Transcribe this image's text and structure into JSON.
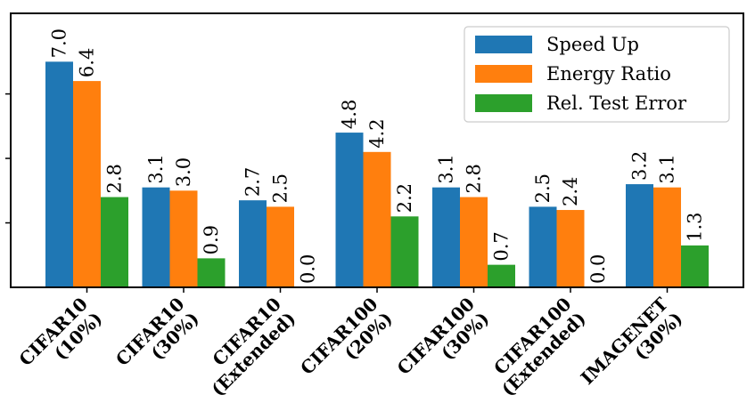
{
  "chart_data": {
    "type": "bar",
    "categories": [
      [
        "CIFAR10",
        "(10%)"
      ],
      [
        "CIFAR10",
        "(30%)"
      ],
      [
        "CIFAR10",
        "(Extended)"
      ],
      [
        "CIFAR100",
        "(20%)"
      ],
      [
        "CIFAR100",
        "(30%)"
      ],
      [
        "CIFAR100",
        "(Extended)"
      ],
      [
        "IMAGENET",
        "(30%)"
      ]
    ],
    "series": [
      {
        "name": "Speed Up",
        "color": "#1f77b4",
        "values": [
          7.0,
          3.1,
          2.7,
          4.8,
          3.1,
          2.5,
          3.2
        ],
        "labels": [
          "7.0",
          "3.1",
          "2.7",
          "4.8",
          "3.1",
          "2.5",
          "3.2"
        ]
      },
      {
        "name": "Energy Ratio",
        "color": "#ff7f0e",
        "values": [
          6.4,
          3.0,
          2.5,
          4.2,
          2.8,
          2.4,
          3.1
        ],
        "labels": [
          "6.4",
          "3.0",
          "2.5",
          "4.2",
          "2.8",
          "2.4",
          "3.1"
        ]
      },
      {
        "name": "Rel. Test Error",
        "color": "#2ca02c",
        "values": [
          2.8,
          0.9,
          0.0,
          2.2,
          0.7,
          0.0,
          1.3
        ],
        "labels": [
          "2.8",
          "0.9",
          "0.0",
          "2.2",
          "0.7",
          "0.0",
          "1.3"
        ]
      }
    ],
    "title": "",
    "xlabel": "",
    "ylabel": "",
    "ylim": [
      0,
      8.5
    ],
    "grid": false,
    "legend_position": "top-right"
  }
}
